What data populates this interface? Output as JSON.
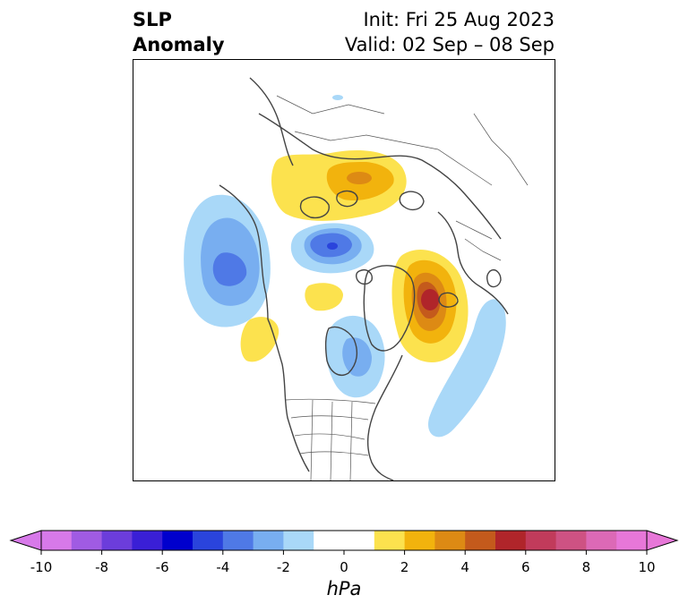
{
  "title": {
    "left_line1": "SLP",
    "left_line2": "Anomaly",
    "right_line1": "Init: Fri 25 Aug 2023",
    "right_line2": "Valid: 02 Sep – 08 Sep"
  },
  "colorbar": {
    "unit": "hPa",
    "ticks": [
      "-10",
      "-8",
      "-6",
      "-4",
      "-2",
      "0",
      "2",
      "4",
      "6",
      "8",
      "10"
    ],
    "colors": [
      "#d779e9",
      "#a05be3",
      "#6c3ddb",
      "#3a1fd6",
      "#0000cd",
      "#2a44dc",
      "#4f79e6",
      "#78aef0",
      "#a9d8f8",
      "#ffffff",
      "#ffffff",
      "#fce24e",
      "#f2b30d",
      "#dd8a14",
      "#c45a1c",
      "#b0252a",
      "#c13b5b",
      "#ce5283",
      "#dc69b6",
      "#e777d8"
    ],
    "under_color": "#d779e9",
    "over_color": "#e777d8"
  },
  "map": {
    "projection": "north-polar-stereographic",
    "features": [
      {
        "name": "north-pacific-low",
        "sign": "negative",
        "peak_hpa": -5
      },
      {
        "name": "arctic-kara-low",
        "sign": "negative",
        "peak_hpa": -5
      },
      {
        "name": "hudson-bay-low",
        "sign": "negative",
        "peak_hpa": -3
      },
      {
        "name": "north-atlantic-low",
        "sign": "negative",
        "peak_hpa": -1
      },
      {
        "name": "siberia-high",
        "sign": "positive",
        "peak_hpa": 3
      },
      {
        "name": "greenland-high",
        "sign": "positive",
        "peak_hpa": 7
      },
      {
        "name": "alaska-high",
        "sign": "positive",
        "peak_hpa": 1
      },
      {
        "name": "arctic-canada-high",
        "sign": "positive",
        "peak_hpa": 1
      }
    ]
  }
}
